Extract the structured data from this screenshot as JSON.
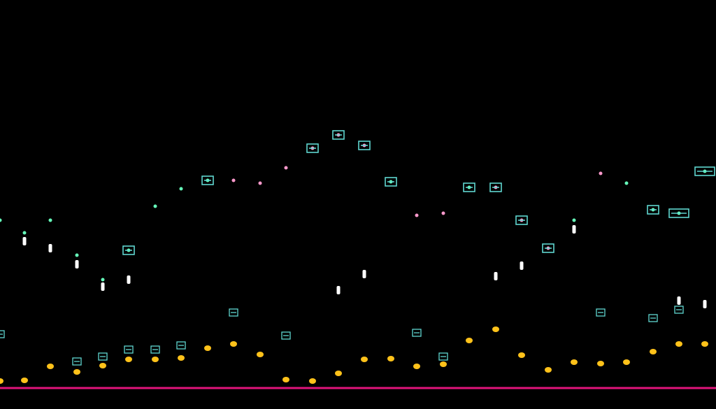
{
  "colors": {
    "background": "#000000",
    "green": "#22dd88",
    "magenta": "#ee1199",
    "white": "#ffffff",
    "gold": "#ffc21a",
    "cyan_marker": "#5fd6d0",
    "baseline": "#e0147a"
  },
  "icons": {
    "bracket_marker": "bracket-marker-icon",
    "gold_dot": "gold-dot-icon"
  }
}
